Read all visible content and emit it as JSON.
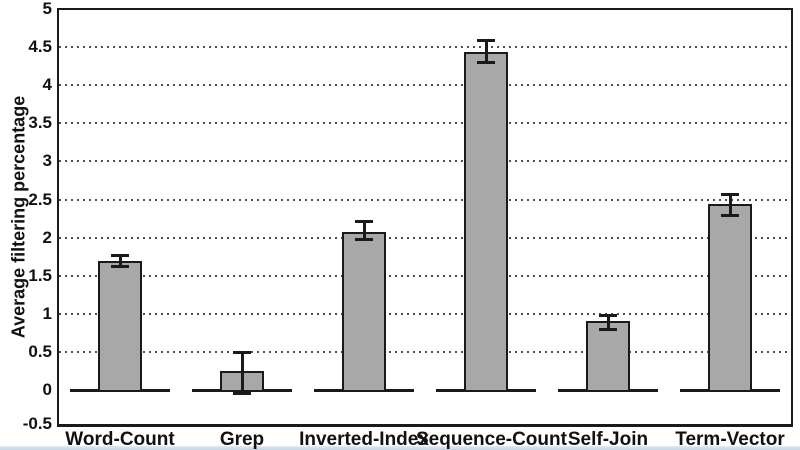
{
  "chart_data": {
    "type": "bar",
    "title": "",
    "categories": [
      "Word-Count",
      "Grep",
      "Inverted-Index",
      "Sequence-Count",
      "Self-Join",
      "Term-Vector"
    ],
    "values": [
      1.7,
      0.25,
      2.08,
      4.43,
      0.9,
      2.44
    ],
    "error_up": [
      0.07,
      0.25,
      0.14,
      0.17,
      0.08,
      0.13
    ],
    "error_down": [
      0.07,
      0.29,
      0.1,
      0.13,
      0.1,
      0.14
    ],
    "xlabel": "",
    "ylabel": "Average filtering percentage",
    "ylim": [
      -0.5,
      5
    ],
    "ytick_step": 0.5,
    "yticks": [
      "5",
      "4.5",
      "4",
      "3.5",
      "3",
      "2.5",
      "2",
      "1.5",
      "1",
      "0.5",
      "0",
      "-0.5"
    ],
    "grid": "horizontal-dotted",
    "legend": "none",
    "colors": {
      "bar_fill": "#a8a8a8",
      "bar_border": "#1a1a1a",
      "axis": "#1a1a1a",
      "grid_dots": "#4d4d4d",
      "text": "#111111",
      "background": "#ffffff",
      "bottom_strip_top": "#e3eaf1",
      "bottom_strip_bottom": "#c3d3e2"
    }
  }
}
